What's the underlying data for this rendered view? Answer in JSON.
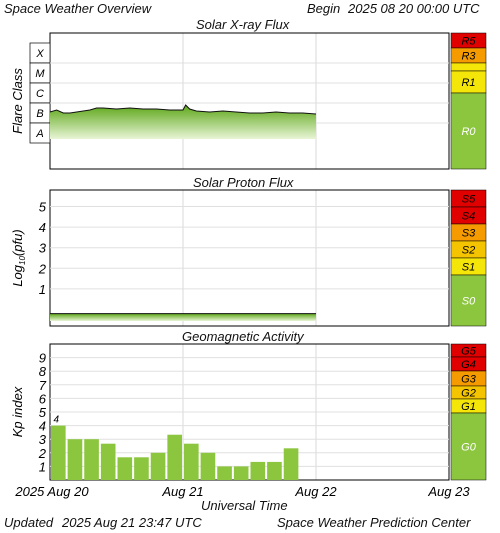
{
  "header": {
    "title": "Space Weather Overview",
    "begin_label": "Begin",
    "begin_value": "2025 08 20 00:00 UTC"
  },
  "footer": {
    "updated_label": "Updated",
    "updated_value": "2025 Aug 21 23:47 UTC",
    "credit": "Space Weather Prediction Center"
  },
  "chart_data": [
    {
      "type": "area",
      "title": "Solar X-ray Flux",
      "ylabel": "Flare Class",
      "classes": [
        "A",
        "B",
        "C",
        "M",
        "X"
      ],
      "x_days": [
        0.0,
        0.05,
        0.1,
        0.15,
        0.2,
        0.25,
        0.3,
        0.35,
        0.4,
        0.5,
        0.6,
        0.7,
        0.8,
        0.9,
        1.0,
        1.02,
        1.05,
        1.1,
        1.2,
        1.3,
        1.4,
        1.5,
        1.6,
        1.7,
        1.8,
        1.9,
        2.0
      ],
      "y_class": [
        1.55,
        1.65,
        1.5,
        1.5,
        1.55,
        1.6,
        1.65,
        1.75,
        1.75,
        1.7,
        1.75,
        1.7,
        1.7,
        1.65,
        1.65,
        1.9,
        1.7,
        1.6,
        1.55,
        1.6,
        1.55,
        1.5,
        1.5,
        1.55,
        1.5,
        1.5,
        1.45
      ],
      "xlim_days": [
        0,
        3
      ],
      "levels": [
        "R0",
        "R1",
        "R3",
        "R5"
      ]
    },
    {
      "type": "area",
      "title": "Solar Proton Flux",
      "ylabel": "Log10(pfu)",
      "yticks": [
        1,
        2,
        3,
        4,
        5
      ],
      "ylim": [
        -0.8,
        5.8
      ],
      "x_days": [
        0,
        2
      ],
      "y_log": [
        -0.2,
        -0.2
      ],
      "xlim_days": [
        0,
        3
      ],
      "levels": [
        "S0",
        "S1",
        "S2",
        "S3",
        "S4",
        "S5"
      ]
    },
    {
      "type": "bar",
      "title": "Geomagnetic Activity",
      "ylabel": "Kp index",
      "yticks": [
        1,
        2,
        3,
        4,
        5,
        6,
        7,
        8,
        9
      ],
      "ylim": [
        0,
        10
      ],
      "values": [
        4,
        3,
        3,
        2.67,
        1.67,
        1.67,
        2,
        3.33,
        2.67,
        2,
        1,
        1,
        1.33,
        1.33,
        2.33
      ],
      "bar_label": "4",
      "xlim_days": [
        0,
        3
      ],
      "levels": [
        "G0",
        "G1",
        "G2",
        "G3",
        "G4",
        "G5"
      ],
      "xticks": [
        "2025 Aug 20",
        "Aug 21",
        "Aug 22",
        "Aug 23"
      ],
      "xlabel": "Universal Time"
    }
  ],
  "colors": {
    "r0": "#8cc63f",
    "r1": "#f5e60a",
    "r3": "#f59b00",
    "r5": "#e00000",
    "area_top": "#5ca617",
    "area_bottom": "#e8f5d6",
    "bar": "#8cc63f"
  }
}
